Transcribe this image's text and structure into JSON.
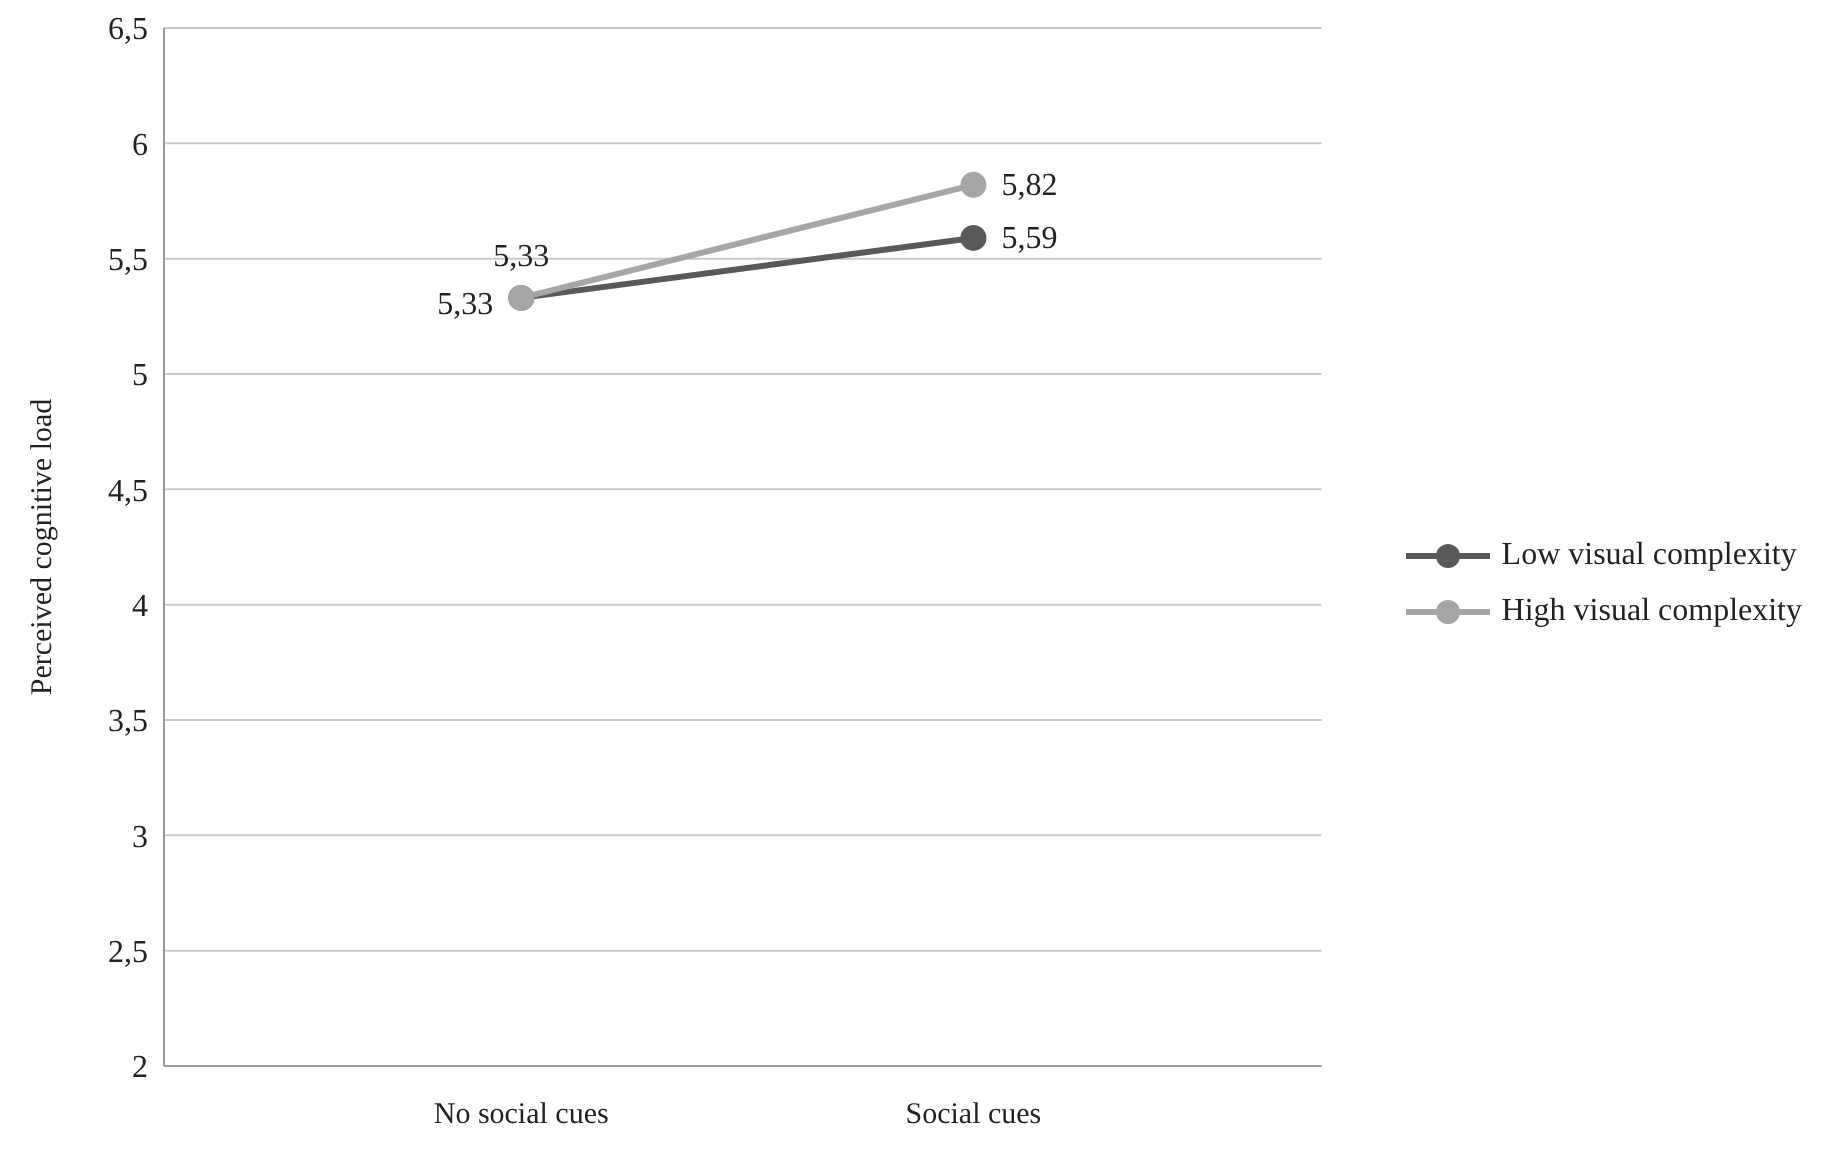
{
  "chart_data": {
    "type": "line",
    "ylabel": "Perceived cognitive load",
    "categories": [
      "No social cues",
      "Social cues"
    ],
    "series": [
      {
        "name": "Low visual complexity",
        "color": "#595959",
        "values": [
          5.33,
          5.59
        ],
        "value_labels": [
          "5,33",
          "5,59"
        ]
      },
      {
        "name": "High visual complexity",
        "color": "#a6a6a6",
        "values": [
          5.33,
          5.82
        ],
        "value_labels": [
          "5,33",
          "5,82"
        ]
      }
    ],
    "ylim": [
      2,
      6.5
    ],
    "yticks": [
      2,
      {
        "value": 2.5,
        "label": "2,5"
      },
      3,
      {
        "value": 3.5,
        "label": "3,5"
      },
      4,
      {
        "value": 4.5,
        "label": "4,5"
      },
      5,
      {
        "value": 5.5,
        "label": "5,5"
      },
      6,
      {
        "value": 6.5,
        "label": "6,5"
      }
    ],
    "grid": "y",
    "legend": "right",
    "marker": "circle",
    "line_style": "solid"
  }
}
